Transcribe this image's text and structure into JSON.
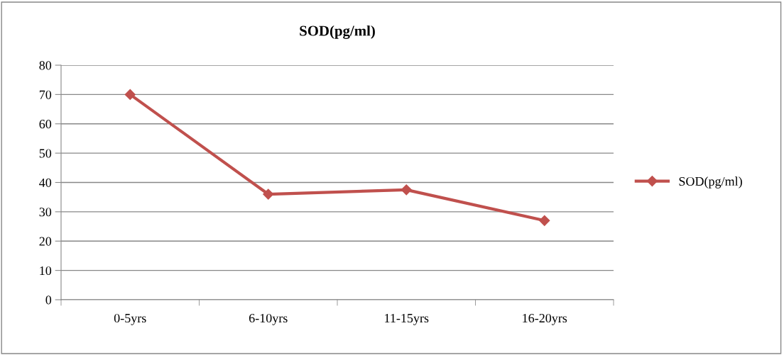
{
  "chart_data": {
    "type": "line",
    "title": "SOD(pg/ml)",
    "categories": [
      "0-5yrs",
      "6-10yrs",
      "11-15yrs",
      "16-20yrs"
    ],
    "series": [
      {
        "name": "SOD(pg/ml)",
        "color": "#c0504d",
        "values": [
          70,
          36,
          37.5,
          27
        ]
      }
    ],
    "ylim": [
      0,
      80
    ],
    "yticks": [
      0,
      10,
      20,
      30,
      40,
      50,
      60,
      70,
      80
    ],
    "grid": "y",
    "legend": "right",
    "marker": "diamond",
    "line_style": "solid"
  }
}
